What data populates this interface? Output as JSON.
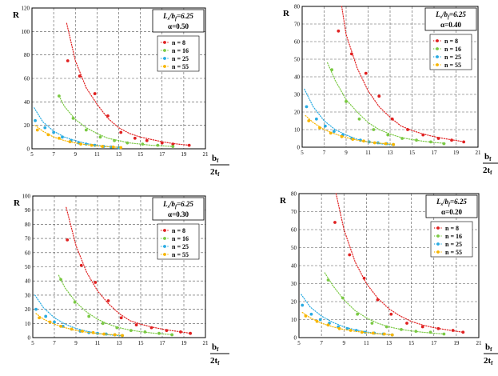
{
  "colors": {
    "n8": "#e02020",
    "n16": "#7ac943",
    "n25": "#29abe2",
    "n55": "#f7b500",
    "grid": "#555555"
  },
  "chart_data": [
    {
      "type": "scatter",
      "params": {
        "ratio_label": "L",
        "ratio_sub1": "s",
        "ratio_mid": "/b",
        "ratio_sub2": "f",
        "ratio_value": "=6.25",
        "alpha_label": "α=0.50"
      },
      "ylabel": "R",
      "xlabel_top": "b",
      "xlabel_top_sub": "f",
      "xlabel_bottom": "2t",
      "xlabel_bottom_sub": "f",
      "xlim": [
        5,
        21
      ],
      "ylim": [
        0,
        120
      ],
      "xticks": [
        5,
        7,
        9,
        11,
        13,
        15,
        17,
        19,
        21
      ],
      "yticks": [
        0,
        20,
        40,
        60,
        80,
        100,
        120
      ],
      "grid": true,
      "legend_position": "upper-right",
      "series": [
        {
          "name": "n = 8",
          "color_key": "n8",
          "x": [
            8.3,
            9.4,
            10.8,
            12.0,
            13.2,
            14.5,
            15.6,
            17.0,
            18.0,
            19.5
          ],
          "y": [
            75,
            62,
            47,
            28,
            14,
            9,
            7,
            5,
            4,
            3
          ],
          "fit": {
            "x": [
              8.2,
              9,
              10,
              11,
              12,
              13,
              14,
              15,
              16,
              17,
              18,
              19,
              19.6
            ],
            "y": [
              107,
              75,
              52,
              38,
              26,
              18,
              13,
              10,
              8,
              6,
              4.5,
              3.5,
              3
            ]
          }
        },
        {
          "name": "n = 16",
          "color_key": "n16",
          "x": [
            7.5,
            8.8,
            10.0,
            11.3,
            12.6,
            13.8,
            15.2,
            16.6,
            18.0
          ],
          "y": [
            45,
            26,
            16,
            10,
            7,
            5,
            4,
            3,
            2
          ],
          "fit": {
            "x": [
              7.5,
              8,
              9,
              10,
              11,
              12,
              13,
              14,
              15,
              16,
              17,
              18
            ],
            "y": [
              45,
              36,
              25,
              18,
              13,
              9,
              7,
              5,
              4,
              3,
              2.5,
              2
            ]
          }
        },
        {
          "name": "n = 25",
          "color_key": "n25",
          "x": [
            5.3,
            6.2,
            7.0,
            7.8,
            8.6,
            9.3,
            10.0,
            10.8,
            11.6,
            12.3,
            13.0
          ],
          "y": [
            24,
            18,
            14,
            10,
            7,
            5,
            4,
            3,
            2,
            1.5,
            1
          ],
          "fit": {
            "x": [
              5.2,
              6,
              7,
              8,
              9,
              10,
              11,
              12,
              13
            ],
            "y": [
              35,
              23,
              15,
              10,
              7,
              4.5,
              3,
              2,
              1.2
            ]
          }
        },
        {
          "name": "n = 55",
          "color_key": "n55",
          "x": [
            5.5,
            6.5,
            7.5,
            8.5,
            9.5,
            10.5,
            11.5,
            12.5,
            13.2
          ],
          "y": [
            16,
            12,
            9,
            6,
            4,
            3,
            2,
            1.5,
            1
          ],
          "fit": {
            "x": [
              5.3,
              6,
              7,
              8,
              9,
              10,
              11,
              12,
              13
            ],
            "y": [
              20,
              15,
              10,
              7,
              5,
              3.5,
              2.5,
              1.8,
              1.2
            ]
          }
        }
      ]
    },
    {
      "type": "scatter",
      "params": {
        "ratio_label": "L",
        "ratio_sub1": "s",
        "ratio_mid": "/b",
        "ratio_sub2": "f",
        "ratio_value": "=6.25",
        "alpha_label": "α=0.40"
      },
      "ylabel": "R",
      "xlabel_top": "b",
      "xlabel_top_sub": "f",
      "xlabel_bottom": "2t",
      "xlabel_bottom_sub": "f",
      "xlim": [
        5,
        21
      ],
      "ylim": [
        0,
        80
      ],
      "xticks": [
        5,
        7,
        9,
        11,
        13,
        15,
        17,
        19,
        21
      ],
      "yticks": [
        0,
        10,
        20,
        30,
        40,
        50,
        60,
        70,
        80
      ],
      "grid": true,
      "legend_position": "upper-right",
      "series": [
        {
          "name": "n = 8",
          "color_key": "n8",
          "x": [
            8.3,
            9.5,
            10.8,
            12.0,
            13.2,
            14.6,
            16.0,
            17.4,
            18.6,
            19.7
          ],
          "y": [
            66,
            53,
            42,
            29,
            16,
            10,
            7,
            5,
            4,
            3
          ],
          "fit": {
            "x": [
              8.6,
              9,
              10,
              11,
              12,
              13,
              14,
              15,
              16,
              17,
              18,
              19,
              19.8
            ],
            "y": [
              80,
              64,
              45,
              32,
              23,
              17,
              12,
              9.5,
              7.5,
              6,
              4.8,
              3.8,
              3
            ]
          }
        },
        {
          "name": "n = 16",
          "color_key": "n16",
          "x": [
            7.7,
            9.0,
            10.2,
            11.5,
            12.8,
            14.1,
            15.4,
            16.7,
            17.9
          ],
          "y": [
            44,
            26,
            16,
            10,
            7,
            5,
            4,
            3,
            2
          ],
          "fit": {
            "x": [
              7.3,
              8,
              9,
              10,
              11,
              12,
              13,
              14,
              15,
              16,
              17,
              18
            ],
            "y": [
              48,
              38,
              27,
              20,
              14,
              10,
              7.5,
              5.5,
              4.3,
              3.4,
              2.7,
              2.2
            ]
          }
        },
        {
          "name": "n = 25",
          "color_key": "n25",
          "x": [
            5.4,
            6.3,
            7.1,
            7.9,
            8.7,
            9.5,
            10.3,
            11.1,
            11.9,
            12.7,
            13.3
          ],
          "y": [
            23,
            16,
            12,
            9,
            7,
            5,
            4,
            3,
            2.5,
            2,
            1.5
          ],
          "fit": {
            "x": [
              5.2,
              6,
              7,
              8,
              9,
              10,
              11,
              12,
              13,
              13.4
            ],
            "y": [
              33,
              23,
              15,
              10,
              7,
              4.5,
              3,
              2,
              1.4,
              1.2
            ]
          }
        },
        {
          "name": "n = 55",
          "color_key": "n55",
          "x": [
            5.6,
            6.6,
            7.6,
            8.6,
            9.6,
            10.6,
            11.6,
            12.6,
            13.3
          ],
          "y": [
            15,
            11,
            8,
            6,
            4.5,
            3.5,
            2.5,
            2,
            1.5
          ],
          "fit": {
            "x": [
              5.3,
              6,
              7,
              8,
              9,
              10,
              11,
              12,
              13,
              13.4
            ],
            "y": [
              18,
              14,
              10,
              7.5,
              5.5,
              4,
              3,
              2.3,
              1.8,
              1.6
            ]
          }
        }
      ]
    },
    {
      "type": "scatter",
      "params": {
        "ratio_label": "L",
        "ratio_sub1": "s",
        "ratio_mid": "/b",
        "ratio_sub2": "f",
        "ratio_value": "=6.25",
        "alpha_label": "α=0.30"
      },
      "ylabel": "R",
      "xlabel_top": "b",
      "xlabel_top_sub": "f",
      "xlabel_bottom": "2t",
      "xlabel_bottom_sub": "f",
      "xlim": [
        5,
        21
      ],
      "ylim": [
        0,
        100
      ],
      "xticks": [
        5,
        7,
        9,
        11,
        13,
        15,
        17,
        19,
        21
      ],
      "yticks": [
        0,
        10,
        20,
        30,
        40,
        50,
        60,
        70,
        80,
        90,
        100
      ],
      "grid": true,
      "legend_position": "upper-right",
      "series": [
        {
          "name": "n = 8",
          "color_key": "n8",
          "x": [
            8.2,
            9.5,
            10.8,
            12.0,
            13.2,
            14.6,
            16.0,
            17.4,
            18.7,
            19.6
          ],
          "y": [
            69,
            51,
            39,
            26,
            14,
            9,
            7,
            5,
            4,
            3
          ],
          "fit": {
            "x": [
              8.1,
              9,
              10,
              11,
              12,
              13,
              14,
              15,
              16,
              17,
              18,
              19,
              19.6
            ],
            "y": [
              92,
              65,
              46,
              33,
              24,
              17,
              12,
              9.5,
              7.5,
              6,
              4.8,
              3.8,
              3
            ]
          }
        },
        {
          "name": "n = 16",
          "color_key": "n16",
          "x": [
            7.6,
            8.9,
            10.2,
            11.5,
            12.8,
            14.1,
            15.4,
            16.7,
            17.9
          ],
          "y": [
            41,
            25,
            15,
            10,
            7,
            5,
            4,
            3,
            2
          ],
          "fit": {
            "x": [
              7.4,
              8,
              9,
              10,
              11,
              12,
              13,
              14,
              15,
              16,
              17,
              18
            ],
            "y": [
              44,
              35,
              25,
              18,
              13,
              9.5,
              7,
              5.3,
              4.2,
              3.3,
              2.6,
              2.1
            ]
          }
        },
        {
          "name": "n = 25",
          "color_key": "n25",
          "x": [
            5.3,
            6.2,
            7.0,
            7.8,
            8.6,
            9.4,
            10.2,
            11.0,
            11.8,
            12.6,
            13.3
          ],
          "y": [
            20,
            15,
            11,
            8,
            6,
            4.5,
            3.5,
            3,
            2.5,
            2,
            1.5
          ],
          "fit": {
            "x": [
              5.2,
              6,
              7,
              8,
              9,
              10,
              11,
              12,
              13,
              13.4
            ],
            "y": [
              30,
              21,
              14,
              9.5,
              6.5,
              4.5,
              3,
              2,
              1.4,
              1.2
            ]
          }
        },
        {
          "name": "n = 55",
          "color_key": "n55",
          "x": [
            5.6,
            6.6,
            7.6,
            8.6,
            9.6,
            10.6,
            11.6,
            12.6,
            13.3
          ],
          "y": [
            14,
            11,
            8,
            6,
            4.5,
            3.5,
            2.5,
            2,
            1.5
          ],
          "fit": {
            "x": [
              5.3,
              6,
              7,
              8,
              9,
              10,
              11,
              12,
              13,
              13.4
            ],
            "y": [
              17,
              13,
              9.5,
              7,
              5,
              3.8,
              2.8,
              2.2,
              1.8,
              1.6
            ]
          }
        }
      ]
    },
    {
      "type": "scatter",
      "params": {
        "ratio_label": "L",
        "ratio_sub1": "s",
        "ratio_mid": "/b",
        "ratio_sub2": "f",
        "ratio_value": "=6.25",
        "alpha_label": "α=0.20"
      },
      "ylabel": "R",
      "xlabel_top": "b",
      "xlabel_top_sub": "f",
      "xlabel_bottom": "2t",
      "xlabel_bottom_sub": "f",
      "xlim": [
        5,
        21
      ],
      "ylim": [
        0,
        80
      ],
      "xticks": [
        5,
        7,
        9,
        11,
        13,
        15,
        17,
        19,
        21
      ],
      "yticks": [
        0,
        10,
        20,
        30,
        40,
        50,
        60,
        70,
        80
      ],
      "grid": true,
      "legend_position": "upper-right",
      "series": [
        {
          "name": "n = 8",
          "color_key": "n8",
          "x": [
            8.2,
            9.5,
            10.8,
            12.0,
            13.2,
            14.6,
            16.0,
            17.4,
            18.7,
            19.6
          ],
          "y": [
            64,
            46,
            33,
            21,
            13,
            8,
            6,
            5,
            4,
            3
          ],
          "fit": {
            "x": [
              8.3,
              9,
              10,
              11,
              12,
              13,
              14,
              15,
              16,
              17,
              18,
              19,
              19.6
            ],
            "y": [
              80,
              60,
              42,
              30,
              22,
              16,
              12,
              9,
              7,
              5.5,
              4.5,
              3.5,
              3
            ]
          }
        },
        {
          "name": "n = 16",
          "color_key": "n16",
          "x": [
            7.6,
            8.9,
            10.2,
            11.5,
            12.8,
            14.1,
            15.4,
            16.7,
            17.9
          ],
          "y": [
            32,
            22,
            13,
            8,
            6,
            4.5,
            3.5,
            3,
            2
          ],
          "fit": {
            "x": [
              7.3,
              8,
              9,
              10,
              11,
              12,
              13,
              14,
              15,
              16,
              17,
              18
            ],
            "y": [
              36,
              29,
              21,
              15,
              11,
              8,
              6,
              4.6,
              3.7,
              3,
              2.4,
              2
            ]
          }
        },
        {
          "name": "n = 25",
          "color_key": "n25",
          "x": [
            5.3,
            6.1,
            6.9,
            7.7,
            8.5,
            9.3,
            10.1,
            10.9,
            11.7,
            12.5,
            13.3
          ],
          "y": [
            18,
            13,
            10,
            8,
            6,
            5,
            4,
            3,
            2.5,
            2,
            1.5
          ],
          "fit": {
            "x": [
              5.2,
              6,
              7,
              8,
              9,
              10,
              11,
              12,
              13,
              13.4
            ],
            "y": [
              24,
              17,
              12,
              8.5,
              6,
              4.3,
              3.1,
              2.3,
              1.7,
              1.5
            ]
          }
        },
        {
          "name": "n = 55",
          "color_key": "n55",
          "x": [
            5.6,
            6.6,
            7.6,
            8.6,
            9.6,
            10.6,
            11.6,
            12.6,
            13.3
          ],
          "y": [
            12,
            9,
            7,
            5,
            4,
            3,
            2.5,
            2,
            1.5
          ],
          "fit": {
            "x": [
              5.3,
              6,
              7,
              8,
              9,
              10,
              11,
              12,
              13,
              13.4
            ],
            "y": [
              14,
              11,
              8,
              6,
              4.5,
              3.5,
              2.7,
              2.1,
              1.7,
              1.5
            ]
          }
        }
      ]
    }
  ]
}
